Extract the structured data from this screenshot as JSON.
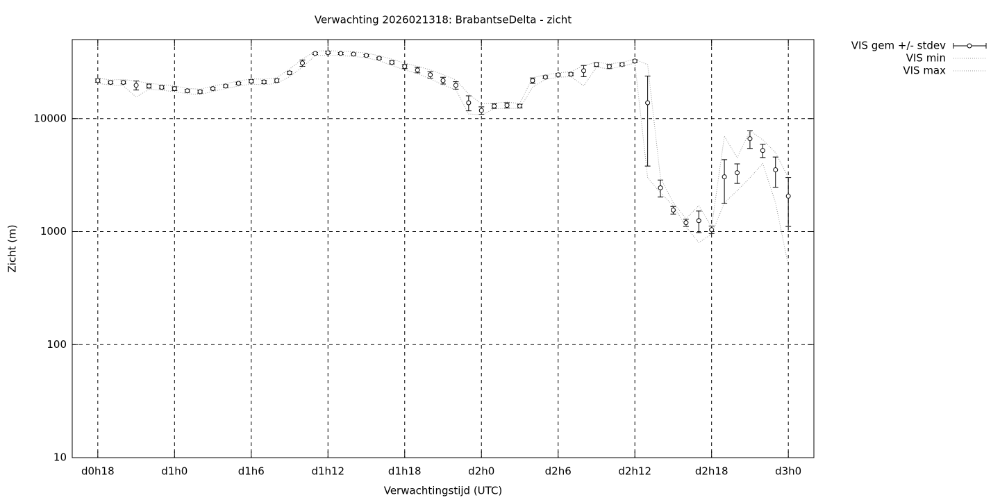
{
  "chart_data": {
    "type": "errorbar-line",
    "title": "Verwachting 2026021318: BrabantseDelta - zicht",
    "x_label": "Verwachtingstijd (UTC)",
    "y_label": "Zicht (m)",
    "log_y": true,
    "grid": true,
    "legend": "outside-top-right",
    "xlim": [
      16,
      74
    ],
    "ylim": [
      10,
      50000
    ],
    "xticks": [
      {
        "value": 18,
        "label": "d0h18"
      },
      {
        "value": 24,
        "label": "d1h0"
      },
      {
        "value": 30,
        "label": "d1h6"
      },
      {
        "value": 36,
        "label": "d1h12"
      },
      {
        "value": 42,
        "label": "d1h18"
      },
      {
        "value": 48,
        "label": "d2h0"
      },
      {
        "value": 54,
        "label": "d2h6"
      },
      {
        "value": 60,
        "label": "d2h12"
      },
      {
        "value": 66,
        "label": "d2h18"
      },
      {
        "value": 72,
        "label": "d3h0"
      }
    ],
    "yticks": [
      10,
      100,
      1000,
      10000
    ],
    "x": [
      18,
      19,
      20,
      21,
      22,
      23,
      24,
      25,
      26,
      27,
      28,
      29,
      30,
      31,
      32,
      33,
      34,
      35,
      36,
      37,
      38,
      39,
      40,
      41,
      42,
      43,
      44,
      45,
      46,
      47,
      48,
      49,
      50,
      51,
      52,
      53,
      54,
      55,
      56,
      57,
      58,
      59,
      60,
      61,
      62,
      63,
      64,
      65,
      66,
      67,
      68,
      69,
      70,
      71,
      72
    ],
    "series": [
      {
        "name": "VIS gem +/- stdev",
        "color": "#000000",
        "values": [
          21700,
          20900,
          20900,
          19700,
          19400,
          18900,
          18400,
          17600,
          17300,
          18400,
          19400,
          20500,
          21400,
          21100,
          21700,
          25400,
          31000,
          37700,
          38300,
          37700,
          37200,
          36200,
          34200,
          31400,
          28900,
          26900,
          24400,
          21700,
          19700,
          13800,
          11800,
          12900,
          13100,
          12900,
          21700,
          23300,
          24400,
          24700,
          26500,
          30100,
          28900,
          30100,
          32300,
          13800,
          2440,
          1550,
          1200,
          1250,
          1040,
          3050,
          3320,
          6640,
          5220,
          3520,
          2060
        ],
        "stdev": [
          700,
          600,
          600,
          1800,
          800,
          600,
          700,
          500,
          500,
          500,
          500,
          500,
          700,
          700,
          700,
          800,
          2000,
          800,
          900,
          800,
          700,
          700,
          700,
          1000,
          1200,
          1500,
          1600,
          1500,
          1500,
          2100,
          900,
          600,
          700,
          500,
          1200,
          600,
          600,
          700,
          3000,
          1200,
          1200,
          900,
          900,
          10000,
          420,
          120,
          90,
          270,
          80,
          1280,
          650,
          1200,
          700,
          1050,
          950
        ]
      },
      {
        "name": "VIS min",
        "color": "#999999",
        "values": [
          20500,
          19800,
          19500,
          15500,
          18200,
          17800,
          17300,
          16600,
          16300,
          17400,
          18400,
          19400,
          20200,
          19900,
          20500,
          23500,
          28500,
          36000,
          36500,
          36000,
          35500,
          34500,
          32500,
          29500,
          27000,
          25000,
          22500,
          19800,
          18000,
          11000,
          10800,
          12200,
          12300,
          12300,
          19000,
          22200,
          23200,
          23500,
          19500,
          28500,
          27500,
          29000,
          31000,
          3000,
          2200,
          1700,
          1100,
          800,
          950,
          1800,
          2300,
          3000,
          4000,
          1800,
          500
        ]
      },
      {
        "name": "VIS max",
        "color": "#999999",
        "values": [
          22800,
          22000,
          22200,
          21500,
          20500,
          20000,
          19500,
          18500,
          18200,
          19400,
          20400,
          21500,
          22500,
          22300,
          23000,
          27500,
          33500,
          39500,
          40000,
          39500,
          39000,
          38000,
          36000,
          33500,
          31000,
          29000,
          27000,
          24500,
          22000,
          16500,
          13500,
          13700,
          14000,
          13600,
          23000,
          24400,
          25400,
          26000,
          29500,
          31500,
          30500,
          31500,
          33500,
          30000,
          3000,
          1800,
          1300,
          1700,
          1100,
          7000,
          4500,
          7800,
          6500,
          5000,
          3000
        ]
      }
    ]
  }
}
